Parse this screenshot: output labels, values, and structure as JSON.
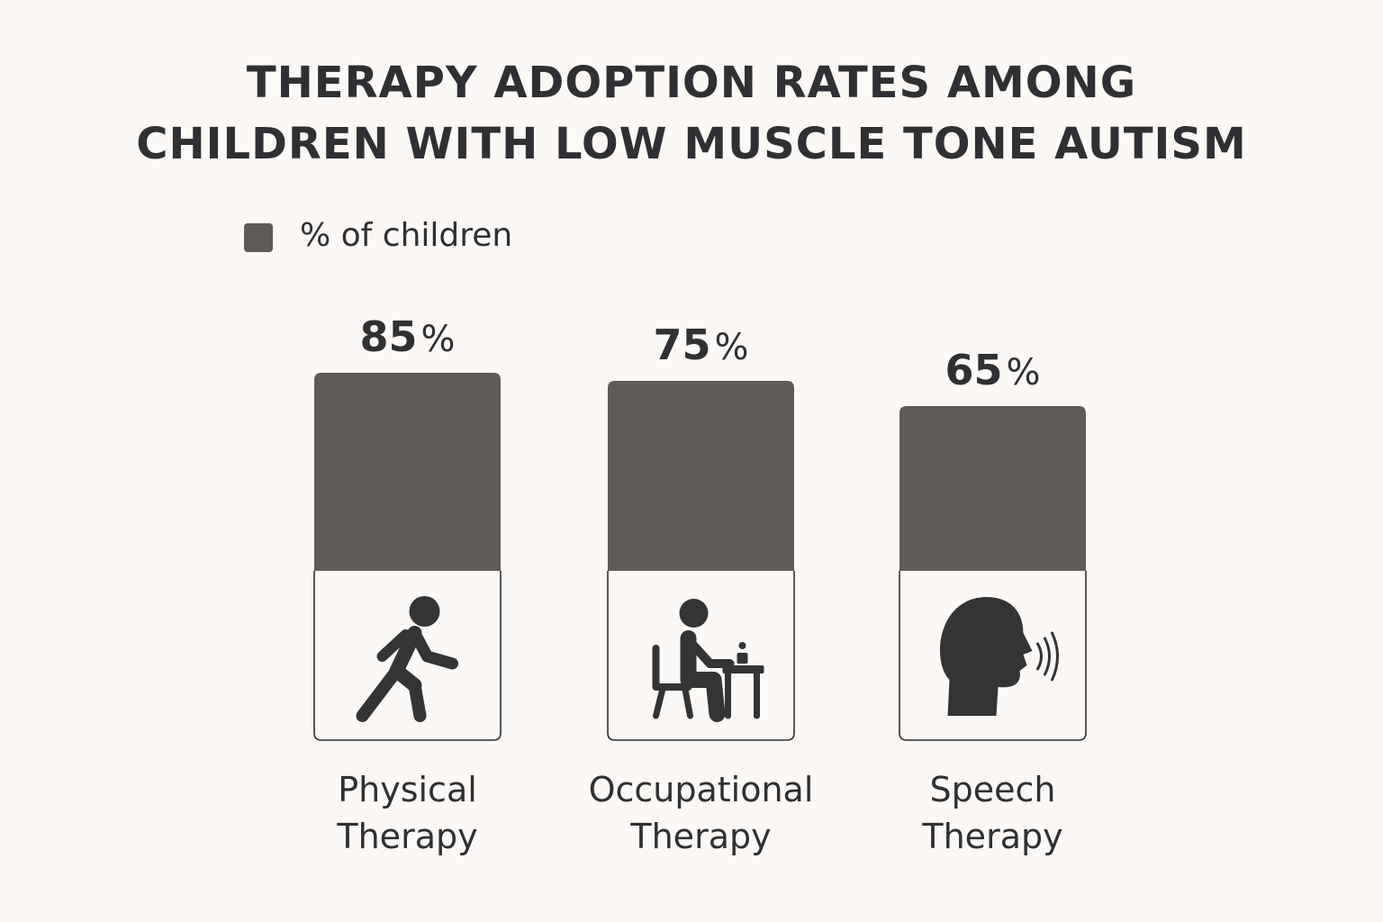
{
  "chart_data": {
    "type": "bar",
    "title": [
      "THERAPY ADOPTION RATES AMONG",
      "CHILDREN WITH LOW MUSCLE TONE AUTISM"
    ],
    "legend": {
      "label": "% of children",
      "placement": "top-left"
    },
    "categories": [
      [
        "Physical",
        "Therapy"
      ],
      [
        "Occupational",
        "Therapy"
      ],
      [
        "Speech",
        "Therapy"
      ]
    ],
    "values": [
      85,
      75,
      65
    ],
    "unit": "%",
    "icons": [
      "walking-person-icon",
      "person-at-desk-icon",
      "speaking-head-icon"
    ],
    "ylim": [
      0,
      100
    ],
    "grid": false
  },
  "colors": {
    "bar_fill": "#5f5b58",
    "card_background": "#fbf8f5",
    "card_border": "#2f3033",
    "icon": "#333436",
    "text": "#2f3033",
    "background": "#fbf8f5"
  }
}
